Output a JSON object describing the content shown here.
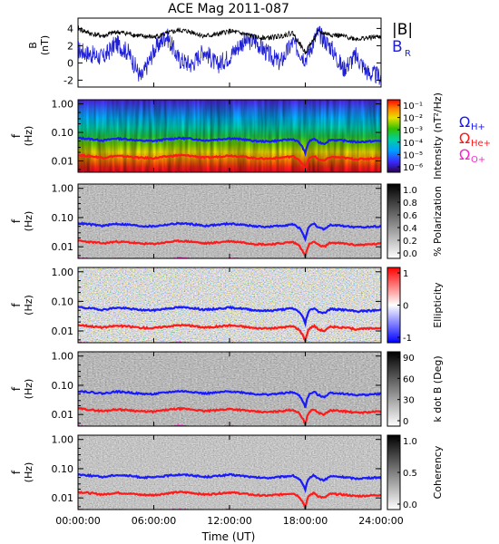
{
  "title": "ACE Mag 2011-087",
  "colors": {
    "B_total": "#000000",
    "B_R": "#1f1fd6",
    "omega_H": "#1a1aff",
    "omega_He": "#ff1a1a",
    "omega_O": "#ff22cc"
  },
  "chart_data": [
    {
      "type": "line",
      "name": "field-timeseries",
      "ylabel_lines": [
        "B",
        "(nT)"
      ],
      "ylim": [
        -2.8,
        5.2
      ],
      "y_ticks": [
        "4",
        "2",
        "0",
        "-2"
      ],
      "legend": [
        "|B|",
        "B_R"
      ],
      "legend_display": {
        "total": "|B|",
        "radial_main": "B",
        "radial_sub": "R"
      },
      "x": [
        0,
        1,
        2,
        3,
        4,
        5,
        6,
        7,
        8,
        9,
        10,
        11,
        12,
        13,
        14,
        15,
        16,
        17,
        18,
        19,
        20,
        21,
        22,
        23,
        24
      ],
      "series": [
        {
          "name": "|B|",
          "values": [
            4.0,
            3.4,
            3.1,
            3.6,
            3.4,
            3.1,
            3.0,
            3.4,
            3.8,
            3.6,
            3.1,
            3.3,
            3.7,
            3.4,
            3.0,
            2.9,
            3.1,
            3.5,
            1.2,
            3.6,
            3.3,
            3.1,
            2.8,
            2.9,
            3.1
          ]
        },
        {
          "name": "B_R",
          "values": [
            1.5,
            1.0,
            0.6,
            2.3,
            1.2,
            -1.8,
            1.4,
            3.2,
            0.4,
            -0.2,
            1.5,
            -0.3,
            0.8,
            2.4,
            2.6,
            1.1,
            0.0,
            2.4,
            0.5,
            3.5,
            1.9,
            -0.7,
            0.8,
            -1.2,
            -1.6
          ]
        }
      ]
    },
    {
      "type": "heatmap",
      "name": "intensity",
      "ylabel_lines": [
        "f",
        "(Hz)"
      ],
      "y_ticks": [
        "1.00",
        "0.10",
        "0.01"
      ],
      "colorbar_label": "Intensity (nT²/Hz)",
      "colorbar_ticks": [
        "10⁻¹",
        "10⁻²",
        "10⁻³",
        "10⁻⁴",
        "10⁻⁵",
        "10⁻⁶"
      ],
      "curve_labels": [
        {
          "main": "Ω",
          "sub": "H+"
        },
        {
          "main": "Ω",
          "sub": "He+"
        },
        {
          "main": "Ω",
          "sub": "O+"
        }
      ]
    },
    {
      "type": "heatmap",
      "name": "polarization",
      "ylabel_lines": [
        "f",
        "(Hz)"
      ],
      "y_ticks": [
        "1.00",
        "0.10",
        "0.01"
      ],
      "colorbar_label": "% Polarization",
      "colorbar_ticks": [
        "1.0",
        "0.8",
        "0.6",
        "0.4",
        "0.2",
        "0.0"
      ]
    },
    {
      "type": "heatmap",
      "name": "ellipticity",
      "ylabel_lines": [
        "f",
        "(Hz)"
      ],
      "y_ticks": [
        "1.00",
        "0.10",
        "0.01"
      ],
      "colorbar_label": "Ellipticity",
      "colorbar_ticks": [
        "1",
        "0",
        "-1"
      ]
    },
    {
      "type": "heatmap",
      "name": "kdotb",
      "ylabel_lines": [
        "f",
        "(Hz)"
      ],
      "y_ticks": [
        "1.00",
        "0.10",
        "0.01"
      ],
      "colorbar_label": "k dot B (Deg)",
      "colorbar_ticks": [
        "90",
        "60",
        "30",
        "0"
      ]
    },
    {
      "type": "heatmap",
      "name": "coherency",
      "ylabel_lines": [
        "f",
        "(Hz)"
      ],
      "y_ticks": [
        "1.00",
        "0.10",
        "0.01"
      ],
      "colorbar_label": "Coherency",
      "colorbar_ticks": [
        "1.0",
        "0.5",
        "0.0"
      ]
    }
  ],
  "cyclotron_freqs": {
    "x": [
      0,
      1,
      2,
      3,
      4,
      5,
      6,
      7,
      8,
      9,
      10,
      11,
      12,
      13,
      14,
      15,
      16,
      17,
      17.5,
      18,
      18.3,
      18.7,
      19,
      19.5,
      20,
      21,
      22,
      23,
      24
    ],
    "H_plus_hz": [
      0.064,
      0.058,
      0.052,
      0.061,
      0.057,
      0.051,
      0.05,
      0.057,
      0.063,
      0.06,
      0.052,
      0.056,
      0.062,
      0.057,
      0.05,
      0.048,
      0.052,
      0.058,
      0.045,
      0.018,
      0.048,
      0.06,
      0.046,
      0.04,
      0.055,
      0.052,
      0.046,
      0.048,
      0.051
    ],
    "He_plus_hz": [
      0.016,
      0.0145,
      0.013,
      0.015,
      0.0142,
      0.0128,
      0.0125,
      0.0142,
      0.0158,
      0.015,
      0.013,
      0.014,
      0.0155,
      0.0142,
      0.0125,
      0.012,
      0.013,
      0.0145,
      0.0112,
      0.0045,
      0.012,
      0.015,
      0.0115,
      0.01,
      0.0138,
      0.013,
      0.0115,
      0.012,
      0.0128
    ],
    "O_plus_hz": [
      0.004,
      0.0036,
      0.0033,
      0.0038,
      0.0036,
      0.0032,
      0.0031,
      0.0036,
      0.004,
      0.0037,
      0.0033,
      0.0035,
      0.0039,
      0.0036,
      0.0031,
      0.003,
      0.0033,
      0.0036,
      0.0028,
      0.0011,
      0.003,
      0.0037,
      0.0029,
      0.0025,
      0.0034,
      0.0033,
      0.0029,
      0.003,
      0.0032
    ]
  },
  "x_axis": {
    "label": "Time (UT)",
    "tick_hours": [
      0,
      6,
      12,
      18,
      24
    ],
    "tick_labels": [
      "00:00:00",
      "06:00:00",
      "12:00:00",
      "18:00:00",
      "24:00:00"
    ]
  }
}
